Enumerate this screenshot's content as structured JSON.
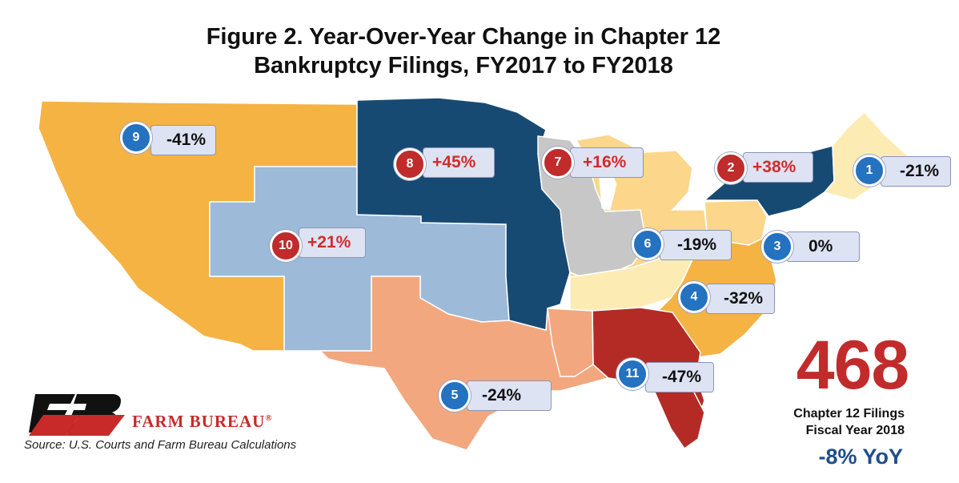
{
  "title": {
    "line1": "Figure 2. Year-Over-Year Change in Chapter 12",
    "line2": "Bankruptcy Filings, FY2017 to FY2018"
  },
  "colors": {
    "up_red": "#d42b2b",
    "down_blue": "#2472c0",
    "circuit_dark_blue": "#174a73",
    "circuit_light_blue": "#9dbad8",
    "circuit_orange": "#f5b343",
    "circuit_light_orange": "#fbd68b",
    "circuit_pale_yellow": "#fdebb4",
    "circuit_gray": "#c7c7c7",
    "circuit_salmon": "#f2a77f",
    "circuit_dark_red": "#b42b25"
  },
  "circuits": [
    {
      "id": "9",
      "change": "-41%",
      "direction": "down"
    },
    {
      "id": "8",
      "change": "+45%",
      "direction": "up"
    },
    {
      "id": "7",
      "change": "+16%",
      "direction": "up"
    },
    {
      "id": "2",
      "change": "+38%",
      "direction": "up"
    },
    {
      "id": "1",
      "change": "-21%",
      "direction": "down"
    },
    {
      "id": "10",
      "change": "+21%",
      "direction": "up"
    },
    {
      "id": "6",
      "change": "-19%",
      "direction": "down"
    },
    {
      "id": "3",
      "change": "0%",
      "direction": "down"
    },
    {
      "id": "4",
      "change": "-32%",
      "direction": "down"
    },
    {
      "id": "11",
      "change": "-47%",
      "direction": "down"
    },
    {
      "id": "5",
      "change": "-24%",
      "direction": "down"
    }
  ],
  "summary": {
    "total": "468",
    "line1": "Chapter 12 Filings",
    "line2": "Fiscal Year 2018",
    "yoy": "-8% YoY"
  },
  "branding": {
    "logo_icon": "farm-bureau-fb-logo",
    "name": "FARM BUREAU",
    "mark": "®"
  },
  "source": "Source: U.S. Courts and Farm Bureau Calculations"
}
